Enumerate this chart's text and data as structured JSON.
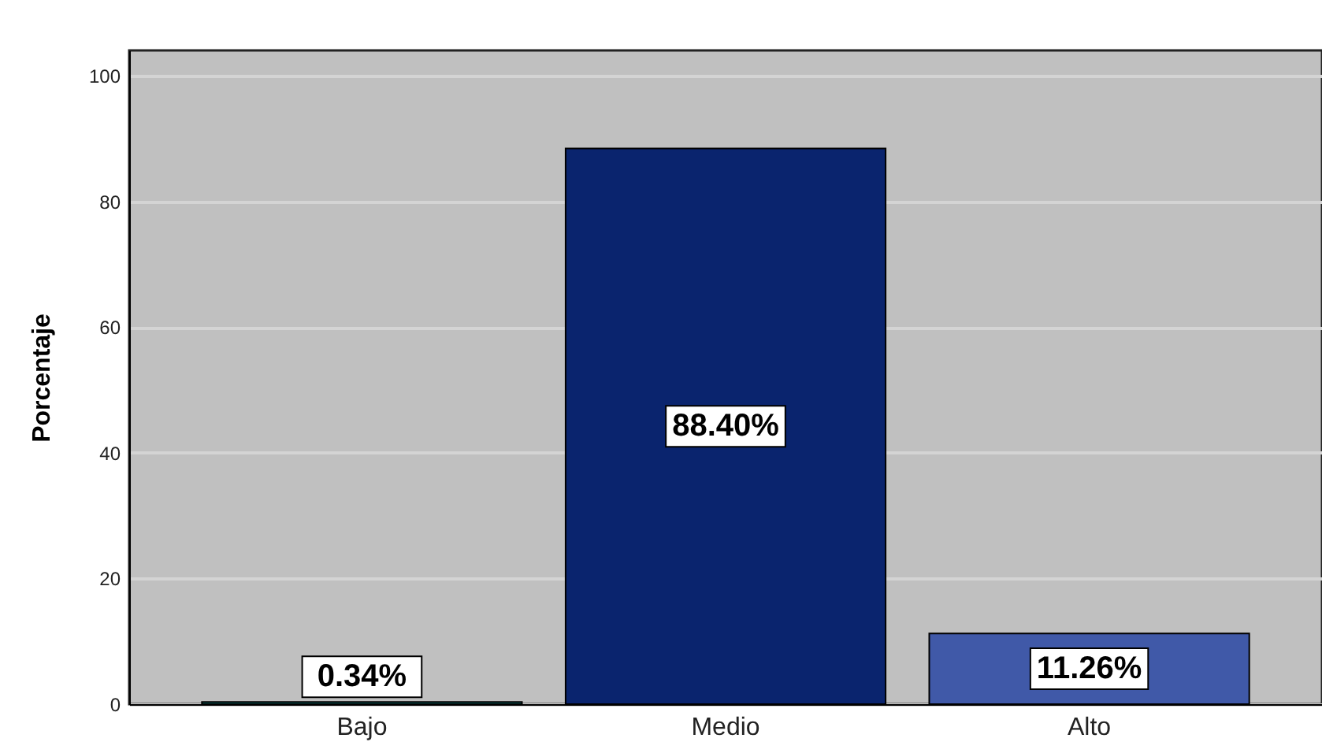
{
  "chart_data": {
    "type": "bar",
    "ylabel": "Porcentaje",
    "categories": [
      "Bajo",
      "Medio",
      "Alto"
    ],
    "values": [
      0.34,
      88.4,
      11.26
    ],
    "colors": [
      "#0f7b77",
      "#0a246e",
      "#4059a8"
    ],
    "value_labels": [
      "0.34%",
      "88.40%",
      "11.26%"
    ],
    "ylim": [
      0,
      104
    ],
    "yticks": [
      0,
      20,
      40,
      60,
      80,
      100
    ],
    "grid": "y"
  }
}
